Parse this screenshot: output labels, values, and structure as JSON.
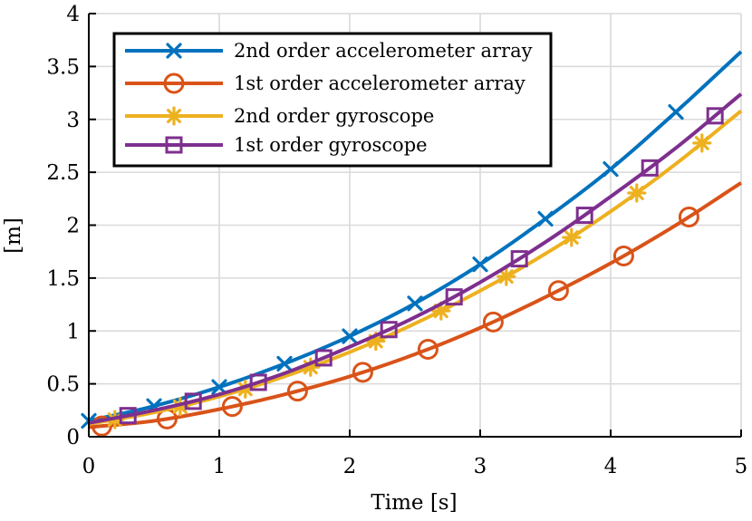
{
  "chart_data": {
    "type": "line",
    "title": "",
    "xlabel": "Time [s]",
    "ylabel": "[m]",
    "xlim": [
      0,
      5
    ],
    "ylim": [
      0,
      4
    ],
    "xticks": [
      0,
      1,
      2,
      3,
      4,
      5
    ],
    "yticks": [
      0,
      0.5,
      1,
      1.5,
      2,
      2.5,
      3,
      3.5,
      4
    ],
    "xtick_labels": [
      "0",
      "1",
      "2",
      "3",
      "4",
      "5"
    ],
    "ytick_labels": [
      "0",
      "0.5",
      "1",
      "1.5",
      "2",
      "2.5",
      "3",
      "3.5",
      "4"
    ],
    "grid": true,
    "legend_position": "top-left",
    "series": [
      {
        "name": "2nd order accelerometer array",
        "color": "#0072BD",
        "marker": "x",
        "x": [
          0,
          0.5,
          1,
          1.5,
          2,
          2.5,
          3,
          3.5,
          4,
          4.5,
          5
        ],
        "y": [
          0.15,
          0.29,
          0.47,
          0.69,
          0.95,
          1.26,
          1.63,
          2.06,
          2.53,
          3.07,
          3.64
        ],
        "marker_x": [
          0,
          0.5,
          1,
          1.5,
          2,
          2.5,
          3,
          3.5,
          4,
          4.5
        ]
      },
      {
        "name": "1st order accelerometer array",
        "color": "#D95319",
        "marker": "o",
        "x": [
          0,
          0.5,
          1,
          1.5,
          2,
          2.5,
          3,
          3.5,
          4,
          4.5,
          5
        ],
        "y": [
          0.09,
          0.15,
          0.26,
          0.4,
          0.57,
          0.78,
          1.03,
          1.32,
          1.64,
          2.0,
          2.4
        ],
        "marker_x": [
          0.1,
          0.6,
          1.1,
          1.6,
          2.1,
          2.6,
          3.1,
          3.6,
          4.1,
          4.6
        ]
      },
      {
        "name": "2nd order gyroscope",
        "color": "#EDB120",
        "marker": "*",
        "x": [
          0,
          0.5,
          1,
          1.5,
          2,
          2.5,
          3,
          3.5,
          4,
          4.5,
          5
        ],
        "y": [
          0.12,
          0.23,
          0.38,
          0.57,
          0.8,
          1.07,
          1.38,
          1.73,
          2.13,
          2.58,
          3.08
        ],
        "marker_x": [
          0.2,
          0.7,
          1.2,
          1.7,
          2.2,
          2.7,
          3.2,
          3.7,
          4.2,
          4.7
        ]
      },
      {
        "name": "1st order gyroscope",
        "color": "#7E2F8E",
        "marker": "s",
        "x": [
          0,
          0.5,
          1,
          1.5,
          2,
          2.5,
          3,
          3.5,
          4,
          4.5,
          5
        ],
        "y": [
          0.13,
          0.25,
          0.4,
          0.6,
          0.85,
          1.13,
          1.46,
          1.84,
          2.27,
          2.73,
          3.24
        ],
        "marker_x": [
          0.3,
          0.8,
          1.3,
          1.8,
          2.3,
          2.8,
          3.3,
          3.8,
          4.3,
          4.8
        ]
      }
    ]
  }
}
